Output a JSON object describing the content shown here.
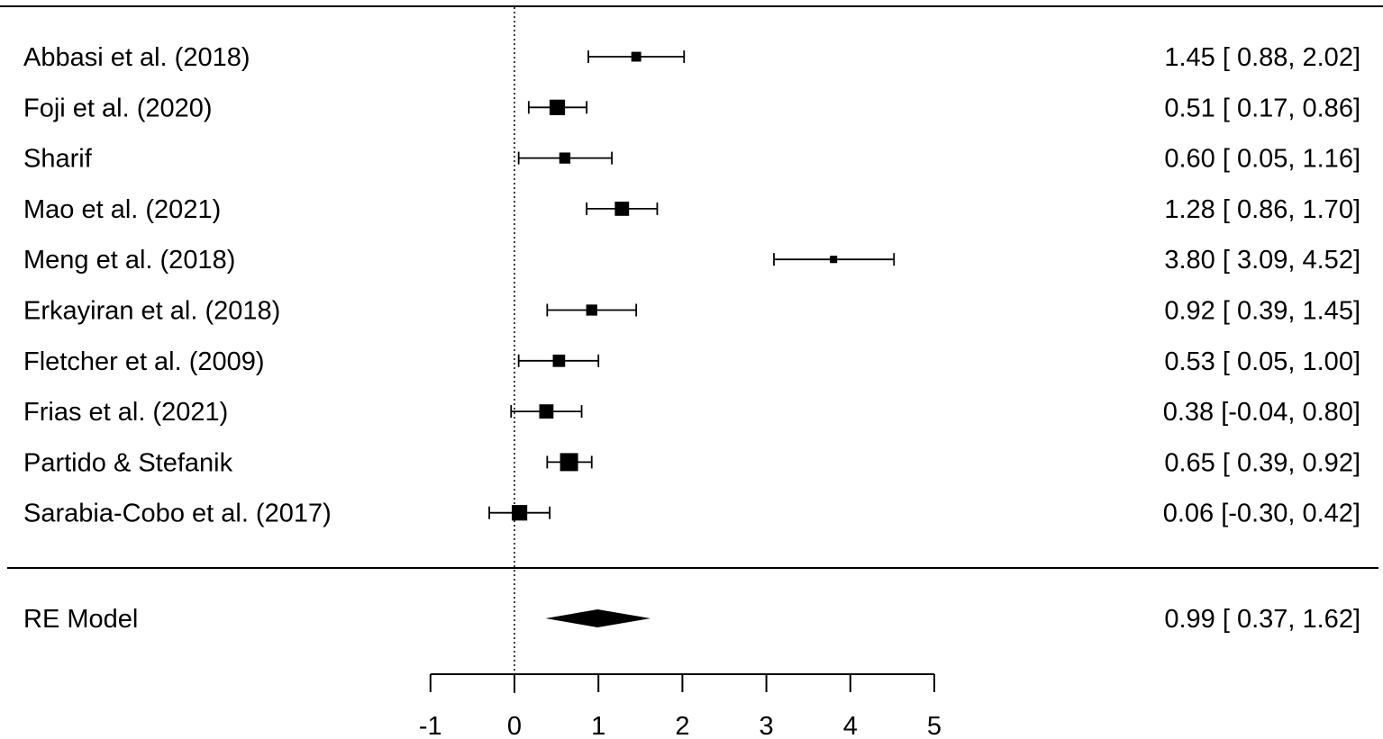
{
  "chart_data": {
    "type": "forest",
    "xlim": [
      -1,
      5
    ],
    "ticks": [
      "-1",
      "0",
      "1",
      "2",
      "3",
      "4",
      "5"
    ],
    "reference_line_x": 0,
    "studies": [
      {
        "label": "Abbasi et al. (2018)",
        "estimate": 1.45,
        "lower": 0.88,
        "upper": 2.02,
        "text": "1.45 [ 0.88, 2.02]",
        "weight": 0.35
      },
      {
        "label": "Foji et al. (2020)",
        "estimate": 0.51,
        "lower": 0.17,
        "upper": 0.86,
        "text": "0.51 [ 0.17, 0.86]",
        "weight": 0.8
      },
      {
        "label": "Sharif",
        "estimate": 0.6,
        "lower": 0.05,
        "upper": 1.16,
        "text": "0.60 [ 0.05, 1.16]",
        "weight": 0.45
      },
      {
        "label": "Mao et al. (2021)",
        "estimate": 1.28,
        "lower": 0.86,
        "upper": 1.7,
        "text": "1.28 [ 0.86, 1.70]",
        "weight": 0.7
      },
      {
        "label": "Meng et al. (2018)",
        "estimate": 3.8,
        "lower": 3.09,
        "upper": 4.52,
        "text": "3.80 [ 3.09, 4.52]",
        "weight": 0.15
      },
      {
        "label": "Erkayiran et al. (2018)",
        "estimate": 0.92,
        "lower": 0.39,
        "upper": 1.45,
        "text": "0.92 [ 0.39, 1.45]",
        "weight": 0.45
      },
      {
        "label": "Fletcher et al.  (2009)",
        "estimate": 0.53,
        "lower": 0.05,
        "upper": 1.0,
        "text": "0.53 [ 0.05, 1.00]",
        "weight": 0.55
      },
      {
        "label": "Frias et al. (2021)",
        "estimate": 0.38,
        "lower": -0.04,
        "upper": 0.8,
        "text": "0.38 [-0.04, 0.80]",
        "weight": 0.7
      },
      {
        "label": "Partido & Stefanik",
        "estimate": 0.65,
        "lower": 0.39,
        "upper": 0.92,
        "text": "0.65 [ 0.39, 0.92]",
        "weight": 1.0
      },
      {
        "label": "Sarabia-Cobo et al. (2017)",
        "estimate": 0.06,
        "lower": -0.3,
        "upper": 0.42,
        "text": "0.06 [-0.30, 0.42]",
        "weight": 0.8
      }
    ],
    "summary": {
      "label": "RE Model",
      "estimate": 0.99,
      "lower": 0.37,
      "upper": 1.62,
      "text": "0.99 [ 0.37, 1.62]"
    }
  }
}
